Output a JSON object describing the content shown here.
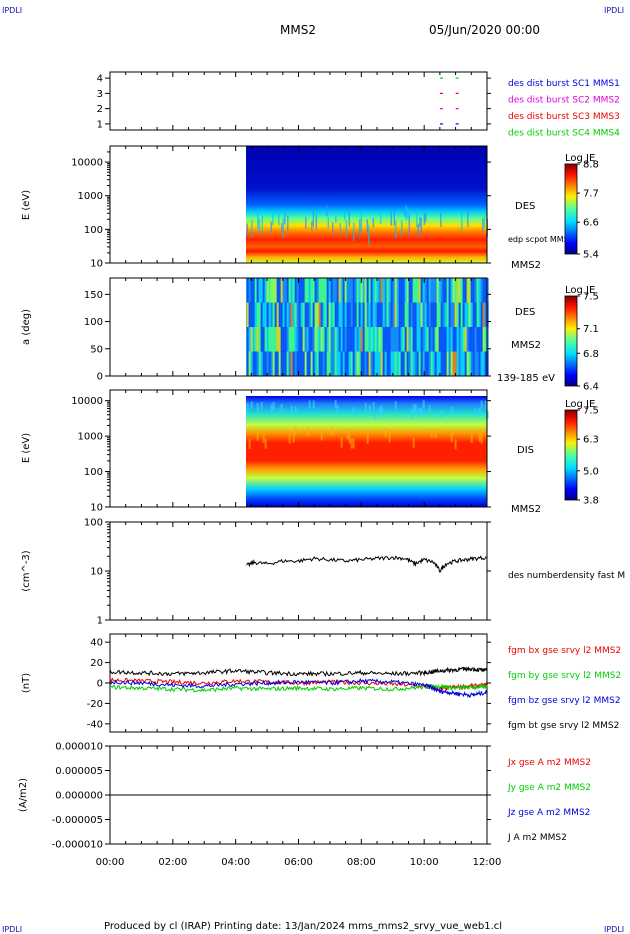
{
  "header": {
    "spacecraft": "MMS2",
    "datetime": "05/Jun/2020 00:00",
    "corner_tl": "IPDLI",
    "corner_tr": "IPDLI",
    "corner_bl": "IPDLI",
    "corner_br": "IPDLI"
  },
  "footer": {
    "text": "Produced by cl (IRAP)   Printing date: 13/Jan/2024   mms_mms2_srvy_vue_web1.cl"
  },
  "chart_data": [
    {
      "type": "scatter",
      "panel": "burst-availability",
      "yticks": [
        "1",
        "2",
        "3",
        "4"
      ],
      "ylim": [
        0.6,
        4.4
      ],
      "legend": [
        {
          "name": "des dist burst SC1 MMS1",
          "color": "#0000dd",
          "y": 1
        },
        {
          "name": "des dist burst SC2 MMS2",
          "color": "#dd00dd",
          "y": 2
        },
        {
          "name": "des dist burst SC3 MMS3",
          "color": "#ee0000",
          "y": 3
        },
        {
          "name": "des dist burst SC4 MMS4",
          "color": "#00cc00",
          "y": 4
        }
      ],
      "marks": [
        {
          "y": 4,
          "x": [
            10.55,
            11.05
          ],
          "color": "#00cc00"
        },
        {
          "y": 3,
          "x": [
            10.55,
            11.05
          ],
          "color": "#ee0000"
        },
        {
          "y": 2,
          "x": [
            10.55,
            11.05
          ],
          "color": "#dd00dd"
        },
        {
          "y": 1,
          "x": [
            10.55,
            11.05
          ],
          "color": "#0000dd"
        }
      ]
    },
    {
      "type": "heatmap",
      "panel": "des-energy-spectrogram",
      "ylabel": "E (eV)",
      "yscale": "log",
      "ylim": [
        10,
        30000
      ],
      "yticks": [
        "10",
        "100",
        "1000",
        "10000"
      ],
      "data_start_hour": 4.35,
      "colorbar": {
        "title": "Log JE",
        "ticks": [
          "8.8",
          "7.7",
          "6.6",
          "5.4"
        ],
        "range": [
          5.4,
          8.8
        ]
      },
      "side_labels": [
        "DES",
        "edp scpot MMS2",
        "MMS2"
      ]
    },
    {
      "type": "heatmap",
      "panel": "des-pitch-angle",
      "ylabel": "a (deg)",
      "ylim": [
        0,
        180
      ],
      "yticks": [
        "0",
        "50",
        "100",
        "150"
      ],
      "data_start_hour": 4.35,
      "colorbar": {
        "title": "Log JE",
        "ticks": [
          "7.5",
          "7.1",
          "6.8",
          "6.4"
        ],
        "range": [
          6.4,
          7.5
        ]
      },
      "side_labels": [
        "DES",
        "MMS2",
        "139-185 eV"
      ]
    },
    {
      "type": "heatmap",
      "panel": "dis-energy-spectrogram",
      "ylabel": "E (eV)",
      "yscale": "log",
      "ylim": [
        10,
        20000
      ],
      "yticks": [
        "10",
        "100",
        "1000",
        "10000"
      ],
      "data_start_hour": 4.35,
      "colorbar": {
        "title": "Log JE",
        "ticks": [
          "7.5",
          "6.3",
          "5.0",
          "3.8"
        ],
        "range": [
          3.8,
          7.5
        ]
      },
      "side_labels": [
        "DIS",
        "MMS2"
      ]
    },
    {
      "type": "line",
      "panel": "density",
      "ylabel": "(cm^-3)",
      "yscale": "log",
      "ylim": [
        1,
        100
      ],
      "yticks": [
        "1",
        "10",
        "100"
      ],
      "series": [
        {
          "name": "des numberdensity fast M",
          "color": "#000000",
          "x": [
            4.35,
            4.6,
            5.0,
            5.5,
            6.0,
            6.5,
            7.0,
            7.5,
            8.0,
            8.5,
            9.0,
            9.4,
            9.7,
            10.0,
            10.3,
            10.5,
            10.7,
            11.0,
            11.3,
            11.6,
            12.0
          ],
          "y": [
            13,
            15,
            14,
            16,
            16,
            18,
            17,
            16,
            17,
            18,
            19,
            18,
            14,
            17,
            15,
            10,
            14,
            16,
            17,
            18,
            19
          ]
        }
      ]
    },
    {
      "type": "line",
      "panel": "magnetic-field",
      "ylabel": "(nT)",
      "ylim": [
        -48,
        48
      ],
      "yticks": [
        "-40",
        "-20",
        "0",
        "20",
        "40"
      ],
      "series": [
        {
          "name": "fgm bx gse srvy l2 MMS2",
          "color": "#ee0000",
          "x": [
            0,
            1,
            2,
            3,
            4,
            5,
            6,
            7,
            8,
            9,
            10,
            10.5,
            11,
            11.5,
            12
          ],
          "y": [
            3,
            2,
            1,
            0,
            2,
            1,
            0,
            1,
            0,
            -1,
            -3,
            -6,
            -4,
            -3,
            -2
          ]
        },
        {
          "name": "fgm by gse srvy l2 MMS2",
          "color": "#00cc00",
          "x": [
            0,
            1,
            2,
            3,
            4,
            5,
            6,
            7,
            8,
            9,
            10,
            10.5,
            11,
            11.5,
            12
          ],
          "y": [
            -4,
            -5,
            -6,
            -7,
            -5,
            -6,
            -5,
            -6,
            -5,
            -6,
            -4,
            -3,
            -5,
            -4,
            -4
          ]
        },
        {
          "name": "fgm bz gse srvy l2 MMS2",
          "color": "#0000dd",
          "x": [
            0,
            1,
            2,
            3,
            4,
            5,
            6,
            7,
            8,
            9,
            10,
            10.5,
            11,
            11.5,
            12
          ],
          "y": [
            1,
            0,
            -2,
            -3,
            -1,
            0,
            1,
            0,
            2,
            1,
            -2,
            -8,
            -10,
            -12,
            -9
          ]
        },
        {
          "name": "fgm bt gse srvy l2 MMS2",
          "color": "#000000",
          "x": [
            0,
            1,
            2,
            3,
            4,
            5,
            6,
            7,
            8,
            9,
            10,
            10.5,
            11,
            11.5,
            12
          ],
          "y": [
            11,
            10,
            9,
            10,
            12,
            10,
            9,
            9,
            10,
            9,
            10,
            12,
            13,
            14,
            12
          ]
        }
      ]
    },
    {
      "type": "line",
      "panel": "current-density",
      "ylabel": "(A/m2)",
      "ylim": [
        -1e-05,
        1e-05
      ],
      "yticks": [
        "-0.000010",
        "-0.000005",
        "0.000000",
        "0.000005",
        "0.000010"
      ],
      "series": [
        {
          "name": "Jx gse A m2 MMS2",
          "color": "#ee0000",
          "x": [
            0,
            12
          ],
          "y": [
            0,
            0
          ]
        },
        {
          "name": "Jy gse A m2 MMS2",
          "color": "#00cc00",
          "x": [
            0,
            12
          ],
          "y": [
            0,
            0
          ]
        },
        {
          "name": "Jz gse A m2 MMS2",
          "color": "#0000dd",
          "x": [
            0,
            12
          ],
          "y": [
            0,
            0
          ]
        },
        {
          "name": "J A m2 MMS2",
          "color": "#000000",
          "x": [
            0,
            12
          ],
          "y": [
            0,
            0
          ]
        }
      ]
    }
  ],
  "xaxis": {
    "range_hours": [
      0,
      12
    ],
    "ticks": [
      "00:00",
      "02:00",
      "04:00",
      "06:00",
      "08:00",
      "10:00",
      "12:00"
    ]
  }
}
